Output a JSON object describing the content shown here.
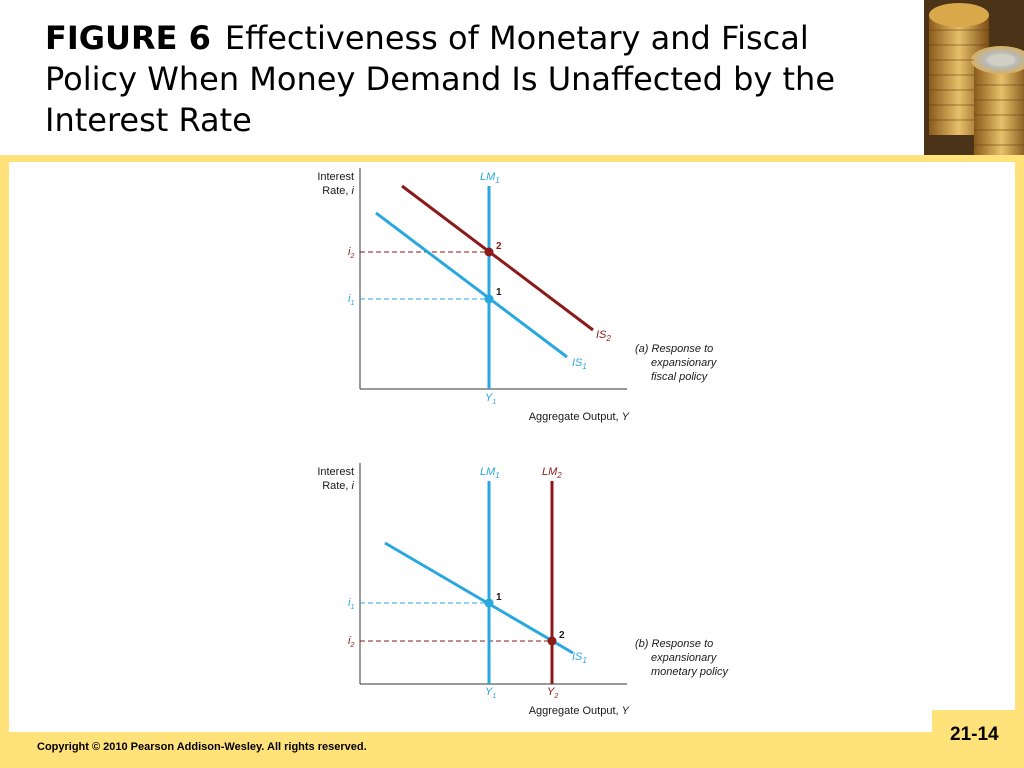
{
  "title": {
    "label": "FIGURE 6",
    "text": "Effectiveness of Monetary and Fiscal Policy When Money Demand Is Unaffected by the Interest Rate"
  },
  "footer": {
    "copyright": "Copyright © 2010 Pearson Addison-Wesley. All rights reserved.",
    "page_number": "21-14"
  },
  "colors": {
    "frame": "#ffe27a",
    "blue_curve": "#29a8e0",
    "red_curve": "#8b1a1a"
  },
  "diagrams": {
    "a": {
      "y_axis_label_1": "Interest",
      "y_axis_label_2": "Rate,",
      "y_axis_label_var": "i",
      "x_axis_label": "Aggregate Output,",
      "x_axis_label_var": "Y",
      "lm": {
        "base": "LM",
        "sub": "1"
      },
      "is1": {
        "base": "IS",
        "sub": "1"
      },
      "is2": {
        "base": "IS",
        "sub": "2"
      },
      "i1": {
        "base": "i",
        "sub": "1"
      },
      "i2": {
        "base": "i",
        "sub": "2"
      },
      "y1": {
        "base": "Y",
        "sub": "1"
      },
      "point1": "1",
      "point2": "2",
      "caption_1": "(a) Response to",
      "caption_2": "expansionary",
      "caption_3": "fiscal policy"
    },
    "b": {
      "y_axis_label_1": "Interest",
      "y_axis_label_2": "Rate,",
      "y_axis_label_var": "i",
      "x_axis_label": "Aggregate Output,",
      "x_axis_label_var": "Y",
      "lm1": {
        "base": "LM",
        "sub": "1"
      },
      "lm2": {
        "base": "LM",
        "sub": "2"
      },
      "is1": {
        "base": "IS",
        "sub": "1"
      },
      "i1": {
        "base": "i",
        "sub": "1"
      },
      "i2": {
        "base": "i",
        "sub": "2"
      },
      "y1": {
        "base": "Y",
        "sub": "1"
      },
      "y2": {
        "base": "Y",
        "sub": "2"
      },
      "point1": "1",
      "point2": "2",
      "caption_1": "(b) Response to",
      "caption_2": "expansionary",
      "caption_3": "monetary policy"
    }
  }
}
